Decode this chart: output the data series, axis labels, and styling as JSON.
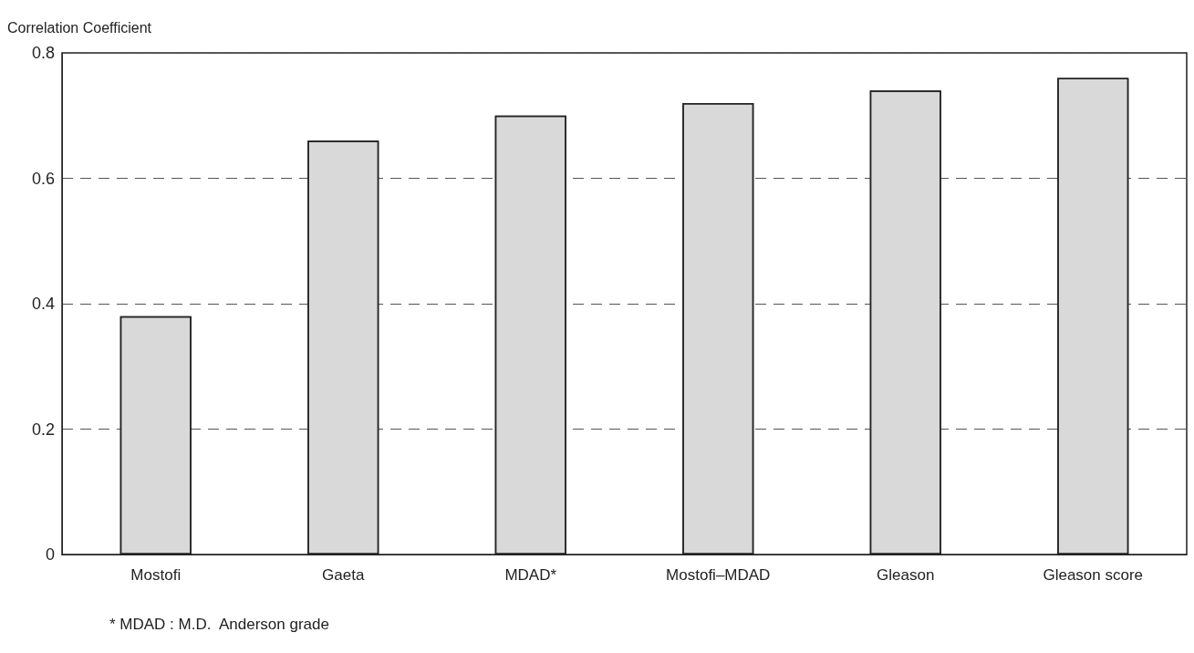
{
  "chart_data": {
    "type": "bar",
    "ylabel": "Correlation Coefficient",
    "categories": [
      "Mostofi",
      "Gaeta",
      "MDAD*",
      "Mostofi–MDAD",
      "Gleason",
      "Gleason score"
    ],
    "values": [
      0.38,
      0.66,
      0.7,
      0.72,
      0.74,
      0.76
    ],
    "color": "#d9d9d9",
    "ylim": [
      0,
      0.8
    ],
    "yticks": [
      0,
      0.2,
      0.4,
      0.6,
      0.8
    ],
    "grid": "y",
    "annotations": [
      "* MDAD : M.D.  Anderson grade"
    ]
  }
}
